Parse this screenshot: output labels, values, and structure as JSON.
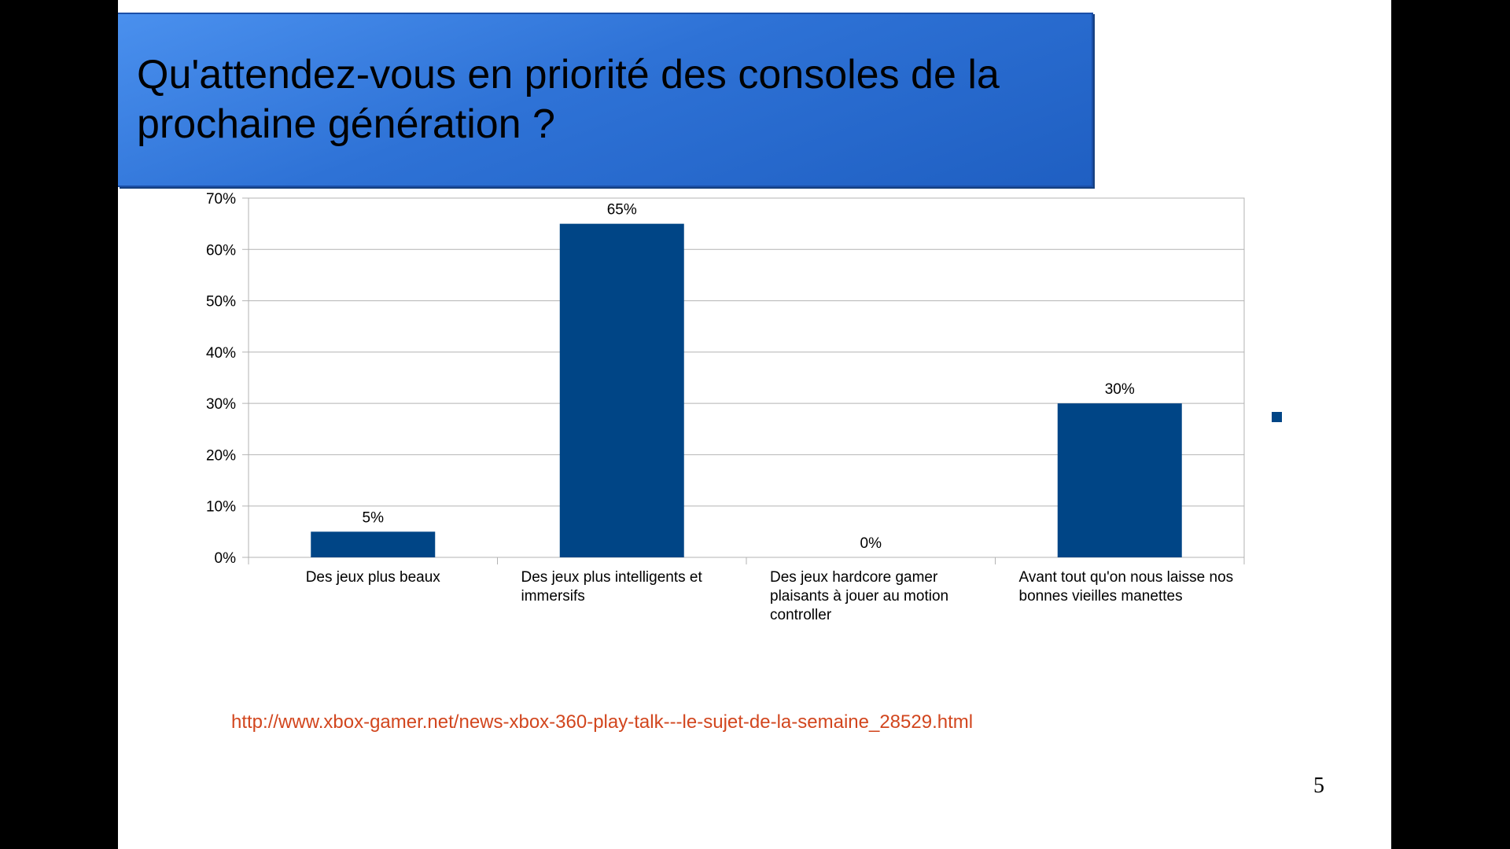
{
  "slide": {
    "title": "Qu'attendez-vous en priorité des consoles de la prochaine génération ?",
    "source_url": "http://www.xbox-gamer.net/news-xbox-360-play-talk---le-sujet-de-la-semaine_28529.html",
    "page_number": "5"
  },
  "colors": {
    "bar": "#004586",
    "title_bg": "#3a80e6",
    "link": "#d2461e"
  },
  "chart_data": {
    "type": "bar",
    "categories": [
      "Des jeux plus beaux",
      "Des jeux plus intelligents et immersifs",
      "Des jeux hardcore gamer plaisants à jouer au motion controller",
      "Avant tout qu'on nous laisse nos bonnes vieilles manettes"
    ],
    "values": [
      5,
      65,
      0,
      30
    ],
    "data_labels": [
      "5%",
      "65%",
      "0%",
      "30%"
    ],
    "y_ticks": [
      "0%",
      "10%",
      "20%",
      "30%",
      "40%",
      "50%",
      "60%",
      "70%"
    ],
    "ylim": [
      0,
      70
    ],
    "grid": true,
    "legend_position": "right"
  }
}
